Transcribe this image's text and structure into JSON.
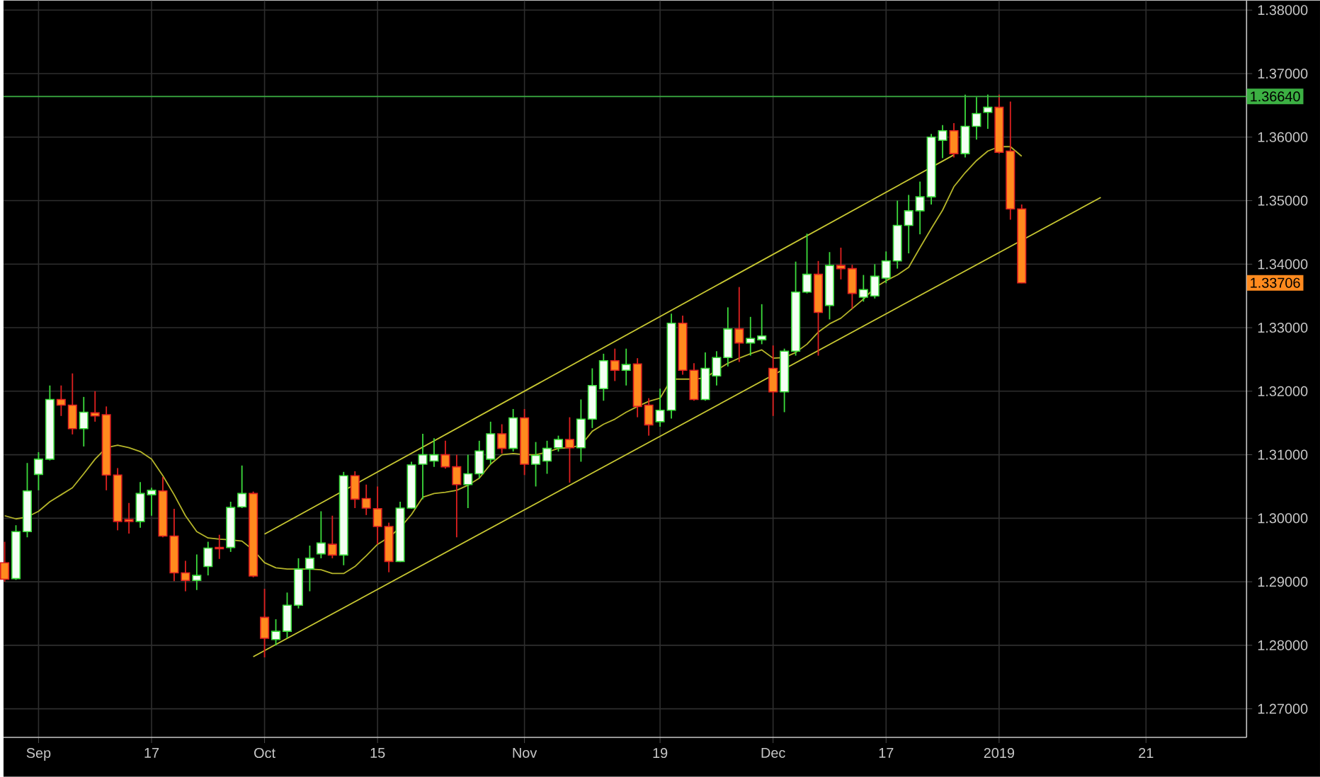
{
  "chart_data": {
    "type": "candlestick",
    "categories": [
      null,
      null,
      null,
      "Sep",
      null,
      null,
      null,
      null,
      null,
      null,
      null,
      null,
      null,
      "17",
      null,
      null,
      null,
      null,
      null,
      null,
      null,
      null,
      null,
      "Oct",
      null,
      null,
      null,
      null,
      null,
      null,
      null,
      null,
      null,
      "15",
      null,
      null,
      null,
      null,
      null,
      null,
      null,
      null,
      null,
      null,
      null,
      null,
      "Nov",
      null,
      null,
      null,
      null,
      null,
      null,
      null,
      null,
      null,
      null,
      null,
      "19",
      null,
      null,
      null,
      null,
      null,
      null,
      null,
      null,
      null,
      "Dec",
      null,
      null,
      null,
      null,
      null,
      null,
      null,
      null,
      null,
      "17",
      null,
      null,
      null,
      null,
      null,
      null,
      null,
      null,
      null,
      "2019",
      null,
      null,
      null,
      null,
      null,
      null,
      null,
      null,
      null,
      null,
      null,
      null,
      "21",
      null,
      null,
      null,
      null,
      null,
      null,
      null,
      null
    ],
    "ohlc": [
      [
        1.293,
        1.2963,
        1.29,
        1.2904
      ],
      [
        1.2905,
        1.2989,
        1.2903,
        1.2979
      ],
      [
        1.2979,
        1.3087,
        1.297,
        1.3043
      ],
      [
        1.3069,
        1.3104,
        1.3044,
        1.3093
      ],
      [
        1.3093,
        1.3209,
        1.3091,
        1.3187
      ],
      [
        1.3187,
        1.3209,
        1.3161,
        1.3178
      ],
      [
        1.3178,
        1.3228,
        1.3132,
        1.3141
      ],
      [
        1.3141,
        1.3191,
        1.3113,
        1.3167
      ],
      [
        1.3166,
        1.32,
        1.3152,
        1.3161
      ],
      [
        1.3163,
        1.3176,
        1.3044,
        1.3068
      ],
      [
        1.3068,
        1.3079,
        1.2981,
        1.2995
      ],
      [
        1.2998,
        1.3024,
        1.2976,
        1.2995
      ],
      [
        1.2995,
        1.3057,
        1.2985,
        1.3039
      ],
      [
        1.3037,
        1.3048,
        1.3004,
        1.3044
      ],
      [
        1.3043,
        1.3065,
        1.297,
        1.2972
      ],
      [
        1.2972,
        1.3015,
        1.2901,
        1.2914
      ],
      [
        1.2914,
        1.2933,
        1.2885,
        1.2902
      ],
      [
        1.2902,
        1.2943,
        1.2887,
        1.291
      ],
      [
        1.2924,
        1.2963,
        1.291,
        1.2953
      ],
      [
        1.2954,
        1.2974,
        1.2936,
        1.2952
      ],
      [
        1.2954,
        1.3026,
        1.2947,
        1.3017
      ],
      [
        1.3018,
        1.3083,
        1.3016,
        1.3039
      ],
      [
        1.3039,
        1.3042,
        1.2907,
        1.2909
      ],
      [
        1.2844,
        1.2889,
        1.2781,
        1.2811
      ],
      [
        1.2809,
        1.2841,
        1.28,
        1.2822
      ],
      [
        1.2822,
        1.2883,
        1.2811,
        1.2863
      ],
      [
        1.2863,
        1.2937,
        1.2858,
        1.292
      ],
      [
        1.292,
        1.2957,
        1.2885,
        1.2937
      ],
      [
        1.2944,
        1.3011,
        1.2937,
        1.2961
      ],
      [
        1.2959,
        1.3004,
        1.2937,
        1.2942
      ],
      [
        1.2942,
        1.3073,
        1.2926,
        1.3067
      ],
      [
        1.3067,
        1.3074,
        1.3016,
        1.303
      ],
      [
        1.3031,
        1.3053,
        1.3005,
        1.3016
      ],
      [
        1.3015,
        1.305,
        1.2959,
        1.2987
      ],
      [
        1.2987,
        1.2993,
        1.2915,
        1.2932
      ],
      [
        1.2932,
        1.3026,
        1.2931,
        1.3016
      ],
      [
        1.3016,
        1.3089,
        1.3015,
        1.3084
      ],
      [
        1.3085,
        1.3133,
        1.303,
        1.31
      ],
      [
        1.309,
        1.3126,
        1.3081,
        1.31
      ],
      [
        1.31,
        1.3122,
        1.3078,
        1.3081
      ],
      [
        1.3081,
        1.31,
        1.297,
        1.3053
      ],
      [
        1.3053,
        1.31,
        1.3016,
        1.307
      ],
      [
        1.307,
        1.3122,
        1.3063,
        1.3106
      ],
      [
        1.3093,
        1.3152,
        1.3085,
        1.3133
      ],
      [
        1.3133,
        1.3148,
        1.3102,
        1.311
      ],
      [
        1.311,
        1.3172,
        1.3105,
        1.3158
      ],
      [
        1.3158,
        1.3172,
        1.3068,
        1.3085
      ],
      [
        1.3085,
        1.312,
        1.305,
        1.3099
      ],
      [
        1.309,
        1.3122,
        1.307,
        1.311
      ],
      [
        1.3111,
        1.313,
        1.3105,
        1.3124
      ],
      [
        1.3124,
        1.3159,
        1.3056,
        1.3111
      ],
      [
        1.3111,
        1.3187,
        1.3089,
        1.3156
      ],
      [
        1.3156,
        1.3236,
        1.3142,
        1.3209
      ],
      [
        1.3204,
        1.3259,
        1.3185,
        1.3248
      ],
      [
        1.3248,
        1.3267,
        1.3216,
        1.3233
      ],
      [
        1.3233,
        1.3267,
        1.3209,
        1.3242
      ],
      [
        1.3243,
        1.3252,
        1.3159,
        1.3176
      ],
      [
        1.3178,
        1.3189,
        1.313,
        1.3147
      ],
      [
        1.3152,
        1.3204,
        1.3144,
        1.317
      ],
      [
        1.317,
        1.3322,
        1.3157,
        1.3307
      ],
      [
        1.3307,
        1.3319,
        1.3226,
        1.3233
      ],
      [
        1.3233,
        1.3244,
        1.3185,
        1.3187
      ],
      [
        1.3187,
        1.3261,
        1.3185,
        1.3236
      ],
      [
        1.3224,
        1.3263,
        1.3209,
        1.3253
      ],
      [
        1.3253,
        1.3332,
        1.3239,
        1.3298
      ],
      [
        1.3298,
        1.3364,
        1.3246,
        1.3276
      ],
      [
        1.3276,
        1.3317,
        1.3256,
        1.3283
      ],
      [
        1.3281,
        1.3337,
        1.3274,
        1.3287
      ],
      [
        1.3236,
        1.3272,
        1.3161,
        1.3199
      ],
      [
        1.3199,
        1.3267,
        1.3167,
        1.3263
      ],
      [
        1.3263,
        1.3404,
        1.3256,
        1.3356
      ],
      [
        1.3356,
        1.3448,
        1.3354,
        1.3384
      ],
      [
        1.3384,
        1.3405,
        1.3256,
        1.3324
      ],
      [
        1.3335,
        1.3419,
        1.3313,
        1.3398
      ],
      [
        1.3398,
        1.3426,
        1.3376,
        1.3393
      ],
      [
        1.3393,
        1.3399,
        1.333,
        1.3354
      ],
      [
        1.3348,
        1.3383,
        1.3341,
        1.336
      ],
      [
        1.335,
        1.34,
        1.3346,
        1.3381
      ],
      [
        1.3378,
        1.342,
        1.337,
        1.3405
      ],
      [
        1.3405,
        1.35,
        1.3393,
        1.3461
      ],
      [
        1.3461,
        1.3509,
        1.3417,
        1.3484
      ],
      [
        1.3484,
        1.353,
        1.3447,
        1.3506
      ],
      [
        1.3506,
        1.3605,
        1.3494,
        1.36
      ],
      [
        1.3595,
        1.3619,
        1.3567,
        1.361
      ],
      [
        1.361,
        1.3622,
        1.3568,
        1.3574
      ],
      [
        1.3574,
        1.3667,
        1.3568,
        1.3617
      ],
      [
        1.3617,
        1.3663,
        1.3596,
        1.3637
      ],
      [
        1.3639,
        1.3667,
        1.3613,
        1.3647
      ],
      [
        1.3647,
        1.3667,
        1.3574,
        1.3576
      ],
      [
        1.3578,
        1.3656,
        1.347,
        1.3487
      ],
      [
        1.3487,
        1.3494,
        1.337,
        1.33706
      ],
      null,
      null,
      null,
      null,
      null,
      null,
      null,
      null,
      null,
      null,
      null,
      null,
      null,
      null,
      null,
      null,
      null,
      null,
      null
    ],
    "series": [
      {
        "type": "line",
        "color": "#b5b52a",
        "values": [
          1.3004,
          1.2999,
          1.3002,
          1.3011,
          1.3026,
          1.3037,
          1.3048,
          1.307,
          1.3093,
          1.3111,
          1.3115,
          1.3111,
          1.3105,
          1.3093,
          1.3067,
          1.3037,
          1.3004,
          1.2979,
          1.2969,
          1.2967,
          1.2966,
          1.2964,
          1.295,
          1.293,
          1.2922,
          1.292,
          1.292,
          1.292,
          1.2919,
          1.2913,
          1.2913,
          1.2924,
          1.2941,
          1.2959,
          1.297,
          1.2985,
          1.3006,
          1.3033,
          1.3039,
          1.3041,
          1.3044,
          1.3052,
          1.3063,
          1.3085,
          1.31,
          1.3102,
          1.31,
          1.31,
          1.3104,
          1.311,
          1.3111,
          1.3115,
          1.3137,
          1.3148,
          1.3156,
          1.3167,
          1.3176,
          1.3184,
          1.3189,
          1.3219,
          1.3219,
          1.3219,
          1.3221,
          1.3233,
          1.3244,
          1.3252,
          1.3259,
          1.3265,
          1.3252,
          1.3253,
          1.3261,
          1.3274,
          1.3293,
          1.3306,
          1.3315,
          1.333,
          1.3345,
          1.3363,
          1.3374,
          1.3383,
          1.3395,
          1.3426,
          1.3456,
          1.3485,
          1.3522,
          1.3544,
          1.3563,
          1.3578,
          1.3585,
          1.3585,
          1.357,
          null,
          null,
          null,
          null,
          null,
          null,
          null,
          null,
          null,
          null,
          null,
          null,
          null,
          null,
          null,
          null,
          null,
          null,
          null
        ]
      },
      {
        "type": "line",
        "color": "#c8c832",
        "values": [
          null,
          null,
          null,
          null,
          null,
          null,
          null,
          null,
          null,
          null,
          null,
          null,
          null,
          null,
          null,
          null,
          null,
          null,
          null,
          null,
          null,
          null,
          null,
          1.2975,
          null,
          null,
          null,
          null,
          null,
          null,
          null,
          null,
          null,
          null,
          null,
          null,
          null,
          null,
          null,
          null,
          null,
          null,
          null,
          null,
          null,
          null,
          null,
          null,
          null,
          null,
          null,
          null,
          null,
          null,
          null,
          null,
          null,
          null,
          null,
          null,
          null,
          null,
          null,
          null,
          null,
          null,
          null,
          null,
          null,
          null,
          null,
          null,
          null,
          null,
          null,
          null,
          null,
          null,
          null,
          null,
          null,
          null,
          null,
          null,
          1.3572,
          null,
          null,
          null,
          null,
          null,
          null,
          null,
          null,
          null,
          null,
          null,
          null,
          null,
          null,
          null,
          null,
          null,
          null,
          null,
          null,
          null,
          null,
          null,
          null,
          null
        ]
      },
      {
        "type": "line",
        "color": "#c8c832",
        "values": [
          null,
          null,
          null,
          null,
          null,
          null,
          null,
          null,
          null,
          null,
          null,
          null,
          null,
          null,
          null,
          null,
          null,
          null,
          null,
          null,
          null,
          null,
          1.2782,
          null,
          null,
          null,
          null,
          null,
          null,
          null,
          null,
          null,
          null,
          null,
          null,
          null,
          null,
          null,
          null,
          null,
          null,
          null,
          null,
          null,
          null,
          null,
          null,
          null,
          null,
          null,
          null,
          null,
          null,
          null,
          null,
          null,
          null,
          null,
          null,
          null,
          null,
          null,
          null,
          null,
          null,
          null,
          null,
          null,
          null,
          null,
          null,
          null,
          null,
          null,
          null,
          null,
          null,
          null,
          null,
          null,
          null,
          null,
          null,
          null,
          null,
          null,
          null,
          null,
          null,
          null,
          null,
          null,
          null,
          null,
          null,
          null,
          null,
          1.3505,
          null,
          null,
          null,
          null,
          null,
          null,
          null,
          null,
          null,
          null,
          null,
          null
        ]
      }
    ],
    "ylim": [
      1.2655,
      1.3815
    ],
    "yticks": [
      {
        "value": 1.27,
        "label": "1.27000"
      },
      {
        "value": 1.28,
        "label": "1.28000"
      },
      {
        "value": 1.29,
        "label": "1.29000"
      },
      {
        "value": 1.3,
        "label": "1.30000"
      },
      {
        "value": 1.31,
        "label": "1.31000"
      },
      {
        "value": 1.32,
        "label": "1.32000"
      },
      {
        "value": 1.33,
        "label": "1.33000"
      },
      {
        "value": 1.34,
        "label": "1.34000"
      },
      {
        "value": 1.35,
        "label": "1.35000"
      },
      {
        "value": 1.36,
        "label": "1.36000"
      },
      {
        "value": 1.37,
        "label": "1.37000"
      },
      {
        "value": 1.38,
        "label": "1.38000"
      }
    ],
    "grid": true,
    "ref_lines": [
      {
        "axis": "y",
        "value": 1.3664,
        "label": "1.36640",
        "color": "#3cb043"
      }
    ],
    "annotations": [
      "1.33706"
    ]
  }
}
